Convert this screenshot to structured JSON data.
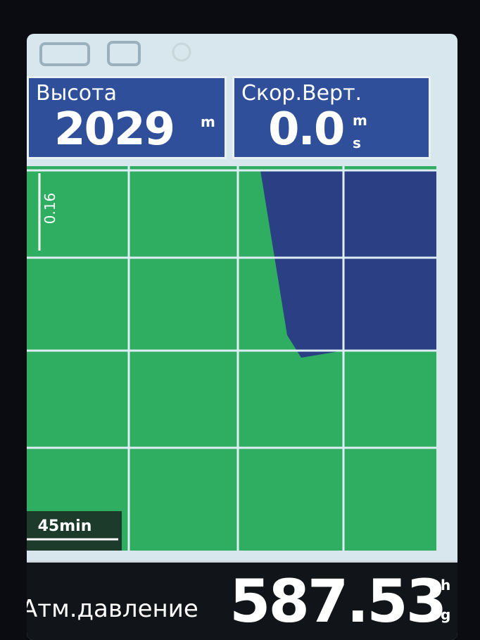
{
  "fields": [
    {
      "label": "Высота",
      "value": "2029",
      "unit": "m"
    },
    {
      "label": "Скор.Верт.",
      "value": "0.0",
      "unit_top": "m",
      "unit_bottom": "s"
    }
  ],
  "chart": {
    "vertical_scale": "0.16",
    "time_scale": "45min"
  },
  "footer": {
    "label": "Атм.давление",
    "value": "587.53",
    "unit_top": "h",
    "unit_bottom": "g"
  }
}
